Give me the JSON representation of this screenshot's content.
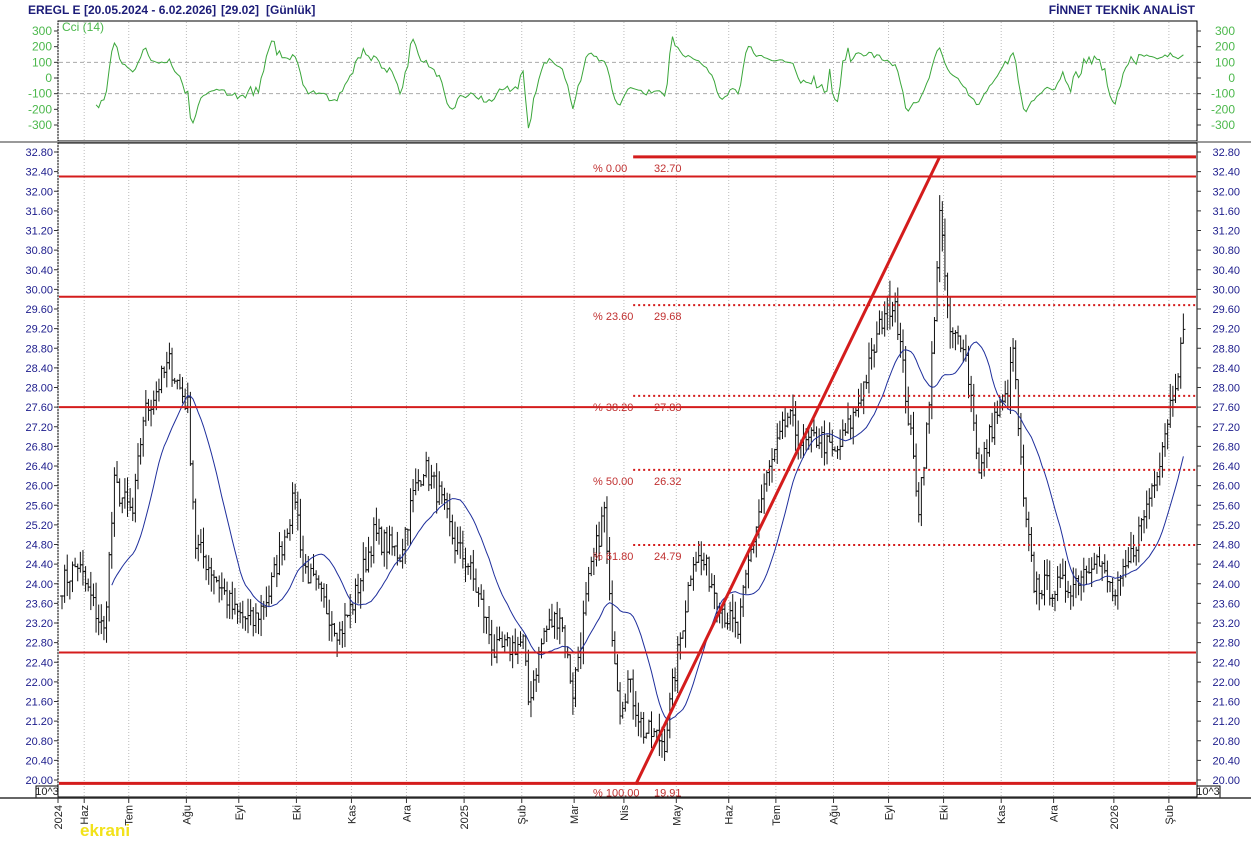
{
  "header": {
    "symbol": "EREGL E",
    "range": "[20.05.2024 - 6.02.2026]",
    "last": "[29.02]",
    "period": "[Günlük]",
    "brand": "FİNNET TEKNİK ANALİST"
  },
  "watermark": "ekrani",
  "colors": {
    "price_axis": "#1c1c8c",
    "cci": "#3aa63a",
    "ma": "#1f2f9c",
    "support": "#d41c1c",
    "bars": "#111111"
  },
  "chart_data": [
    {
      "type": "ohlc",
      "title": "EREGL E daily",
      "ylim": [
        20.0,
        32.8
      ],
      "price_ticks": [
        "20.00",
        "20.40",
        "20.80",
        "21.20",
        "21.60",
        "22.00",
        "22.40",
        "22.80",
        "23.20",
        "23.60",
        "24.00",
        "24.40",
        "24.80",
        "25.20",
        "25.60",
        "26.00",
        "26.40",
        "26.80",
        "27.20",
        "27.60",
        "28.00",
        "28.40",
        "28.80",
        "29.20",
        "29.60",
        "30.00",
        "30.40",
        "30.80",
        "31.20",
        "31.60",
        "32.00",
        "32.40",
        "32.80"
      ],
      "scale_label": "10^3",
      "x_labels": [
        {
          "label": "2024",
          "day": 0
        },
        {
          "label": "Haz",
          "day": 10
        },
        {
          "label": "Tem",
          "day": 27
        },
        {
          "label": "Ağu",
          "day": 49
        },
        {
          "label": "Eyl",
          "day": 69
        },
        {
          "label": "Eki",
          "day": 91
        },
        {
          "label": "Kas",
          "day": 112
        },
        {
          "label": "Ara",
          "day": 133
        },
        {
          "label": "2025",
          "day": 155
        },
        {
          "label": "Şub",
          "day": 177
        },
        {
          "label": "Mar",
          "day": 197
        },
        {
          "label": "Nis",
          "day": 216
        },
        {
          "label": "May",
          "day": 236
        },
        {
          "label": "Haz",
          "day": 256
        },
        {
          "label": "Tem",
          "day": 274
        },
        {
          "label": "Ağu",
          "day": 296
        },
        {
          "label": "Eyl",
          "day": 317
        },
        {
          "label": "Eki",
          "day": 338
        },
        {
          "label": "Kas",
          "day": 360
        },
        {
          "label": "Ara",
          "day": 380
        },
        {
          "label": "2026",
          "day": 403
        },
        {
          "label": "Şub",
          "day": 424
        }
      ],
      "total_days": 429,
      "close_keypoints": [
        [
          0,
          24.0
        ],
        [
          6,
          24.4
        ],
        [
          16,
          23.0
        ],
        [
          20,
          26.0
        ],
        [
          27,
          25.4
        ],
        [
          31,
          27.4
        ],
        [
          41,
          28.5
        ],
        [
          48,
          27.6
        ],
        [
          51,
          24.8
        ],
        [
          58,
          24.2
        ],
        [
          66,
          23.4
        ],
        [
          73,
          23.2
        ],
        [
          79,
          23.8
        ],
        [
          89,
          25.8
        ],
        [
          92,
          24.4
        ],
        [
          98,
          23.8
        ],
        [
          106,
          23.0
        ],
        [
          111,
          23.6
        ],
        [
          119,
          25.0
        ],
        [
          129,
          24.6
        ],
        [
          134,
          25.8
        ],
        [
          138,
          26.4
        ],
        [
          144,
          25.8
        ],
        [
          150,
          24.8
        ],
        [
          155,
          24.4
        ],
        [
          161,
          23.4
        ],
        [
          165,
          22.6
        ],
        [
          176,
          22.8
        ],
        [
          178,
          21.6
        ],
        [
          184,
          23.0
        ],
        [
          190,
          23.4
        ],
        [
          195,
          21.8
        ],
        [
          201,
          24.0
        ],
        [
          207,
          25.5
        ],
        [
          209,
          23.6
        ],
        [
          213,
          21.5
        ],
        [
          216,
          22.0
        ],
        [
          222,
          21.0
        ],
        [
          230,
          20.8
        ],
        [
          234,
          22.2
        ],
        [
          241,
          24.6
        ],
        [
          245,
          24.4
        ],
        [
          253,
          23.4
        ],
        [
          258,
          23.0
        ],
        [
          262,
          24.4
        ],
        [
          268,
          26.0
        ],
        [
          277,
          27.4
        ],
        [
          283,
          26.8
        ],
        [
          289,
          27.0
        ],
        [
          295,
          26.6
        ],
        [
          302,
          27.4
        ],
        [
          308,
          28.4
        ],
        [
          314,
          29.6
        ],
        [
          318,
          29.8
        ],
        [
          323,
          27.4
        ],
        [
          327,
          25.6
        ],
        [
          331,
          27.6
        ],
        [
          335,
          31.5
        ],
        [
          339,
          29.0
        ],
        [
          344,
          29.0
        ],
        [
          348,
          27.4
        ],
        [
          350,
          26.2
        ],
        [
          356,
          27.4
        ],
        [
          361,
          27.8
        ],
        [
          363,
          28.8
        ],
        [
          367,
          25.6
        ],
        [
          371,
          24.0
        ],
        [
          379,
          23.9
        ],
        [
          386,
          24.0
        ],
        [
          394,
          24.6
        ],
        [
          402,
          23.7
        ],
        [
          407,
          24.4
        ],
        [
          413,
          25.4
        ],
        [
          419,
          26.6
        ],
        [
          425,
          28.2
        ],
        [
          428,
          29.0
        ]
      ],
      "moving_average_period": 20,
      "horizontal_lines": [
        32.3,
        29.85,
        27.6,
        22.6,
        19.93
      ],
      "trendline": {
        "from": {
          "day": 219,
          "price": 19.91
        },
        "to": {
          "day": 335,
          "price": 32.7
        }
      },
      "fibonacci": {
        "start_day": 218,
        "levels": [
          {
            "pct": "% 0.00",
            "price": "32.70",
            "value": 32.7,
            "style": "solid"
          },
          {
            "pct": "% 23.60",
            "price": "29.68",
            "value": 29.68,
            "style": "dotted"
          },
          {
            "pct": "% 38.20",
            "price": "27.83",
            "value": 27.83,
            "style": "dotted"
          },
          {
            "pct": "% 50.00",
            "price": "26.32",
            "value": 26.32,
            "style": "dotted"
          },
          {
            "pct": "% 61.80",
            "price": "24.79",
            "value": 24.79,
            "style": "dotted"
          },
          {
            "pct": "% 100.00",
            "price": "19.91",
            "value": 19.91,
            "style": "none"
          }
        ]
      }
    },
    {
      "type": "line",
      "title": "Cci (14)",
      "ylim": [
        -350,
        350
      ],
      "ticks": [
        "300",
        "200",
        "100",
        "0",
        "-100",
        "-200",
        "-300"
      ],
      "tick_values": [
        300,
        200,
        100,
        0,
        -100,
        -200,
        -300
      ],
      "period": 14,
      "reference_lines": [
        100,
        -100
      ]
    }
  ]
}
